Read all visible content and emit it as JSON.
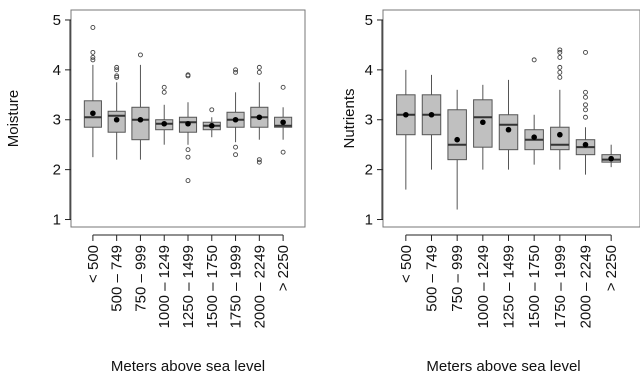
{
  "chart_data": [
    {
      "type": "boxplot",
      "xlabel": "Meters above sea level",
      "ylabel": "Moisture",
      "ylim": [
        0.85,
        5.2
      ],
      "yticks": [
        "1",
        "2",
        "3",
        "4",
        "5"
      ],
      "categories": [
        "< 500",
        "500 – 749",
        "750 – 999",
        "1000 – 1249",
        "1250 – 1499",
        "1500 – 1750",
        "1750 – 1999",
        "2000 – 2249",
        "> 2250"
      ],
      "boxes": [
        {
          "whisker_low": 2.25,
          "q1": 2.85,
          "median": 3.05,
          "q3": 3.38,
          "whisker_high": 4.1,
          "mean": 3.13,
          "outliers": [
            4.2,
            4.25,
            4.35,
            4.85
          ]
        },
        {
          "whisker_low": 2.2,
          "q1": 2.75,
          "median": 3.08,
          "q3": 3.17,
          "whisker_high": 3.75,
          "mean": 3.0,
          "outliers": [
            3.85,
            3.88,
            4.0,
            4.05
          ]
        },
        {
          "whisker_low": 2.2,
          "q1": 2.6,
          "median": 3.0,
          "q3": 3.25,
          "whisker_high": 4.1,
          "mean": 3.0,
          "outliers": [
            4.3
          ]
        },
        {
          "whisker_low": 2.5,
          "q1": 2.8,
          "median": 2.92,
          "q3": 3.0,
          "whisker_high": 3.3,
          "mean": 2.92,
          "outliers": [
            3.55,
            3.65
          ]
        },
        {
          "whisker_low": 2.5,
          "q1": 2.75,
          "median": 2.95,
          "q3": 3.05,
          "whisker_high": 3.35,
          "mean": 2.92,
          "outliers": [
            3.88,
            3.9,
            2.4,
            2.25,
            1.78
          ]
        },
        {
          "whisker_low": 2.65,
          "q1": 2.8,
          "median": 2.88,
          "q3": 2.95,
          "whisker_high": 3.05,
          "mean": 2.88,
          "outliers": [
            3.2
          ]
        },
        {
          "whisker_low": 2.55,
          "q1": 2.85,
          "median": 3.0,
          "q3": 3.15,
          "whisker_high": 3.55,
          "mean": 3.0,
          "outliers": [
            3.95,
            4.0,
            2.45,
            2.3
          ]
        },
        {
          "whisker_low": 2.6,
          "q1": 2.85,
          "median": 3.05,
          "q3": 3.25,
          "whisker_high": 3.75,
          "mean": 3.05,
          "outliers": [
            3.95,
            4.05,
            2.15,
            2.2
          ]
        },
        {
          "whisker_low": 2.6,
          "q1": 2.85,
          "median": 2.88,
          "q3": 3.05,
          "whisker_high": 3.25,
          "mean": 2.95,
          "outliers": [
            3.65,
            2.35
          ]
        }
      ]
    },
    {
      "type": "boxplot",
      "xlabel": "Meters above sea level",
      "ylabel": "Nutrients",
      "ylim": [
        0.85,
        5.2
      ],
      "yticks": [
        "1",
        "2",
        "3",
        "4",
        "5"
      ],
      "categories": [
        "< 500",
        "500 – 749",
        "750 – 999",
        "1000 – 1249",
        "1250 – 1499",
        "1500 – 1750",
        "1750 – 1999",
        "2000 – 2249",
        "> 2250"
      ],
      "boxes": [
        {
          "whisker_low": 1.6,
          "q1": 2.7,
          "median": 3.1,
          "q3": 3.5,
          "whisker_high": 4.0,
          "mean": 3.1,
          "outliers": []
        },
        {
          "whisker_low": 2.0,
          "q1": 2.7,
          "median": 3.1,
          "q3": 3.5,
          "whisker_high": 3.9,
          "mean": 3.1,
          "outliers": []
        },
        {
          "whisker_low": 1.2,
          "q1": 2.2,
          "median": 2.5,
          "q3": 3.2,
          "whisker_high": 3.6,
          "mean": 2.6,
          "outliers": []
        },
        {
          "whisker_low": 2.0,
          "q1": 2.45,
          "median": 3.05,
          "q3": 3.4,
          "whisker_high": 3.7,
          "mean": 2.95,
          "outliers": []
        },
        {
          "whisker_low": 2.0,
          "q1": 2.4,
          "median": 2.9,
          "q3": 3.1,
          "whisker_high": 3.8,
          "mean": 2.8,
          "outliers": []
        },
        {
          "whisker_low": 2.1,
          "q1": 2.4,
          "median": 2.6,
          "q3": 2.8,
          "whisker_high": 3.1,
          "mean": 2.65,
          "outliers": [
            4.2
          ]
        },
        {
          "whisker_low": 2.0,
          "q1": 2.4,
          "median": 2.5,
          "q3": 2.85,
          "whisker_high": 3.6,
          "mean": 2.7,
          "outliers": [
            3.85,
            3.95,
            4.05,
            4.25,
            4.35,
            4.4
          ]
        },
        {
          "whisker_low": 1.9,
          "q1": 2.3,
          "median": 2.45,
          "q3": 2.6,
          "whisker_high": 2.85,
          "mean": 2.5,
          "outliers": [
            3.05,
            3.2,
            3.3,
            3.45,
            3.55,
            4.35
          ]
        },
        {
          "whisker_low": 2.05,
          "q1": 2.15,
          "median": 2.2,
          "q3": 2.3,
          "whisker_high": 2.5,
          "mean": 2.22,
          "outliers": []
        }
      ]
    }
  ]
}
